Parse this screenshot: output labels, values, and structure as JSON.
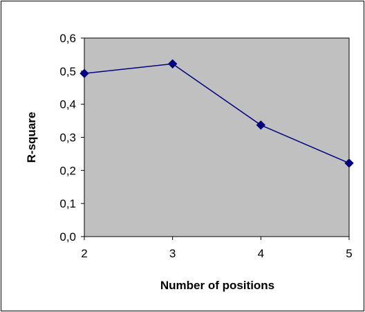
{
  "chart_data": {
    "type": "line",
    "title": "",
    "xlabel": "Number of positions",
    "ylabel": "R-square",
    "x": [
      2,
      3,
      4,
      5
    ],
    "x_tick_labels": [
      "2",
      "3",
      "4",
      "5"
    ],
    "y_tick_labels": [
      "0,0",
      "0,1",
      "0,2",
      "0,3",
      "0,4",
      "0,5",
      "0,6"
    ],
    "ylim": [
      0,
      0.6
    ],
    "xlim": [
      2,
      5
    ],
    "grid": false,
    "legend": "none",
    "series": [
      {
        "values": [
          0.493,
          0.522,
          0.337,
          0.222
        ]
      }
    ],
    "colors": {
      "plot_background": "#C0C0C0",
      "series_line": "#000080",
      "marker": "#000080",
      "axis": "#000000"
    }
  }
}
